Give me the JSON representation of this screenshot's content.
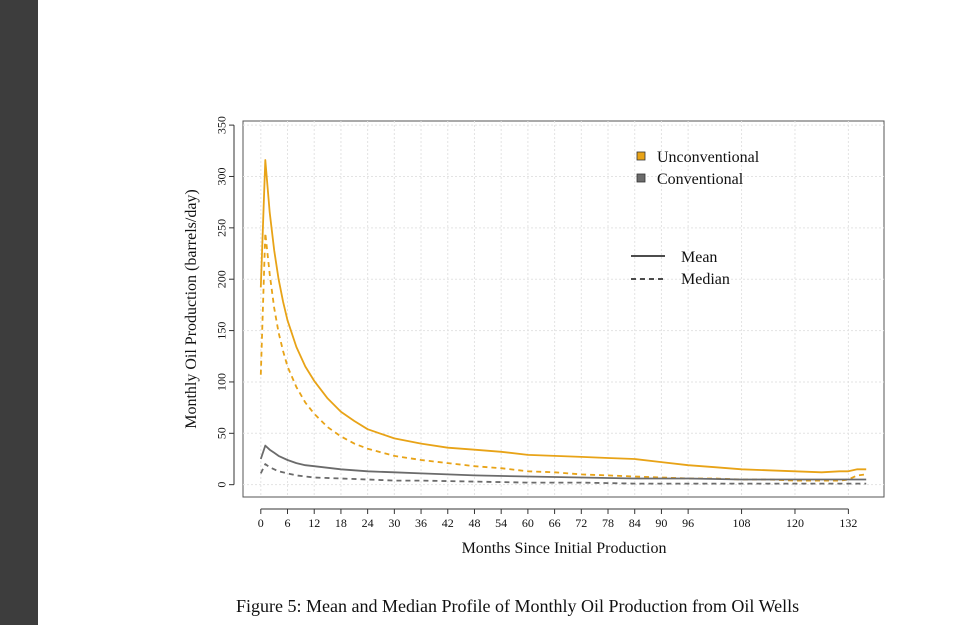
{
  "caption": "Figure 5: Mean and Median Profile of Monthly Oil Production from Oil Wells",
  "chart_data": {
    "type": "line",
    "title": "",
    "xlabel": "Months Since Initial Production",
    "ylabel": "Monthly Oil Production (barrels/day)",
    "xlim": [
      -4,
      140
    ],
    "ylim": [
      -12,
      354
    ],
    "xticks": [
      0,
      6,
      12,
      18,
      24,
      30,
      36,
      42,
      48,
      54,
      60,
      66,
      72,
      78,
      84,
      90,
      96,
      108,
      120,
      132
    ],
    "yticks": [
      0,
      50,
      100,
      150,
      200,
      250,
      300,
      350
    ],
    "grid": true,
    "legend_groups": [
      {
        "placement": "top-right",
        "entries": [
          {
            "label": "Unconventional",
            "color": "#E8A317",
            "marker": "square"
          },
          {
            "label": "Conventional",
            "color": "#6b6b6b",
            "marker": "square"
          }
        ]
      },
      {
        "placement": "center-right",
        "entries": [
          {
            "label": "Mean",
            "style": "solid"
          },
          {
            "label": "Median",
            "style": "dashed"
          }
        ]
      }
    ],
    "series": [
      {
        "group": "Unconventional",
        "stat": "Mean",
        "color": "#E8A317",
        "style": "solid",
        "x": [
          0,
          1,
          2,
          3,
          4,
          5,
          6,
          8,
          10,
          12,
          15,
          18,
          21,
          24,
          30,
          36,
          42,
          48,
          54,
          60,
          66,
          72,
          78,
          84,
          90,
          96,
          102,
          108,
          114,
          120,
          126,
          130,
          132,
          134,
          136
        ],
        "y": [
          192,
          316,
          265,
          228,
          200,
          178,
          160,
          134,
          115,
          101,
          84,
          71,
          62,
          54,
          45,
          40,
          36,
          34,
          32,
          29,
          28,
          27,
          26,
          25,
          22,
          19,
          17,
          15,
          14,
          13,
          12,
          13,
          13,
          15,
          15
        ]
      },
      {
        "group": "Unconventional",
        "stat": "Median",
        "color": "#E8A317",
        "style": "dashed",
        "x": [
          0,
          1,
          2,
          3,
          4,
          5,
          6,
          8,
          10,
          12,
          15,
          18,
          21,
          24,
          30,
          36,
          42,
          48,
          54,
          60,
          66,
          72,
          78,
          84,
          90,
          96,
          102,
          108,
          114,
          120,
          126,
          130,
          132,
          134,
          136
        ],
        "y": [
          107,
          245,
          205,
          172,
          148,
          130,
          115,
          95,
          80,
          69,
          56,
          47,
          40,
          35,
          28,
          24,
          21,
          18,
          16,
          13,
          12,
          10,
          9,
          8,
          7,
          6,
          6,
          5,
          5,
          4,
          4,
          4,
          5,
          9,
          10
        ]
      },
      {
        "group": "Conventional",
        "stat": "Mean",
        "color": "#6b6b6b",
        "style": "solid",
        "x": [
          0,
          1,
          2,
          3,
          4,
          6,
          8,
          10,
          12,
          18,
          24,
          30,
          36,
          48,
          60,
          72,
          84,
          96,
          108,
          120,
          132,
          136
        ],
        "y": [
          25,
          38,
          34,
          31,
          28,
          24,
          21,
          19,
          18,
          15,
          13,
          12,
          11,
          9,
          8,
          7,
          6,
          6,
          5,
          5,
          5,
          5
        ]
      },
      {
        "group": "Conventional",
        "stat": "Median",
        "color": "#6b6b6b",
        "style": "dashed",
        "x": [
          0,
          1,
          2,
          3,
          4,
          6,
          8,
          10,
          12,
          18,
          24,
          30,
          36,
          48,
          60,
          72,
          84,
          96,
          108,
          120,
          132,
          136
        ],
        "y": [
          11,
          20,
          17,
          15,
          13,
          11,
          9,
          8,
          7,
          6,
          5,
          4,
          4,
          3,
          2,
          2,
          1,
          1,
          1,
          1,
          1,
          1
        ]
      }
    ]
  }
}
